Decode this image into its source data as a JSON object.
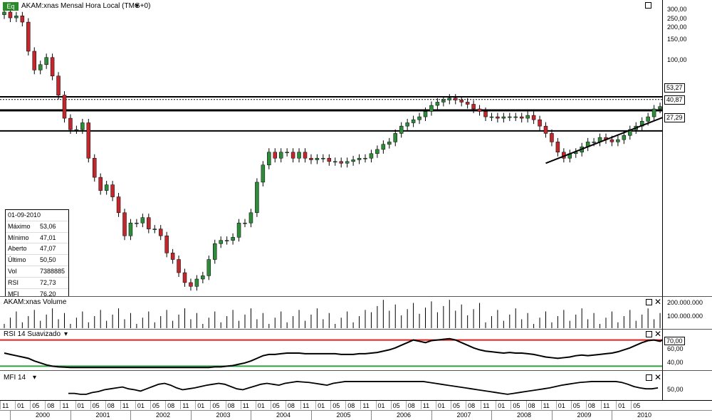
{
  "header": {
    "title": "AKAM:xnas Mensal Hora Local (TMG+0)",
    "badge": "Eq"
  },
  "colors": {
    "up_candle": "#2e8b3a",
    "down_candle": "#c0282d",
    "rsi_upper_line": "#e0201a",
    "rsi_lower_line": "#2ea043",
    "line": "#000000"
  },
  "info": {
    "date": "01-09-2010",
    "rows": [
      {
        "label": "Máximo",
        "value": "53,06"
      },
      {
        "label": "Mínimo",
        "value": "47,01"
      },
      {
        "label": "Aberto",
        "value": "47,07"
      },
      {
        "label": "Último",
        "value": "50,50"
      },
      {
        "label": "Vol",
        "value": "7388885"
      },
      {
        "label": "RSI",
        "value": "72,73"
      },
      {
        "label": "MFI",
        "value": "76,20"
      }
    ]
  },
  "price_axis": {
    "ticks": [
      "300,00",
      "250,00",
      "200,00",
      "150,00",
      "100,00"
    ],
    "highlights": [
      "53,27",
      "40,87",
      "27,29"
    ]
  },
  "volume_panel": {
    "title": "AKAM:xnas Volume",
    "ticks": [
      "200.000.000",
      "100.000.000"
    ]
  },
  "rsi_panel": {
    "title": "RSI 14 Suavizado",
    "ticks": [
      "70,00",
      "60,00",
      "40,00"
    ]
  },
  "mfi_panel": {
    "title": "MFI 14",
    "ticks": [
      "50,00"
    ]
  },
  "x_axis": {
    "month_labels": [
      "11",
      "01",
      "05",
      "08",
      "11",
      "01",
      "05",
      "08",
      "11",
      "01",
      "05",
      "08",
      "11",
      "01",
      "05",
      "08",
      "11",
      "01",
      "05",
      "08",
      "11",
      "01",
      "05",
      "08",
      "11",
      "01",
      "05",
      "08",
      "11",
      "01",
      "05",
      "08",
      "11",
      "01",
      "05",
      "08",
      "11",
      "01",
      "05",
      "08",
      "11",
      "01",
      "05"
    ],
    "years": [
      "2000",
      "2001",
      "2002",
      "2003",
      "2004",
      "2005",
      "2006",
      "2007",
      "2008",
      "2009",
      "2010"
    ]
  },
  "chart_data": [
    {
      "type": "candlestick",
      "title": "AKAM:xnas Mensal Hora Local (TMG+0)",
      "period": "monthly, Nov 1999 – Sep 2010",
      "y_scale": "log",
      "horizontal_levels": [
        53.27,
        40.87,
        27.29
      ],
      "close": [
        280,
        250,
        260,
        230,
        130,
        90,
        100,
        115,
        80,
        55,
        35,
        28,
        28,
        32,
        16,
        11,
        8.5,
        9.5,
        7.5,
        5.5,
        3.5,
        4.5,
        4.5,
        5,
        4,
        4,
        3.5,
        2.5,
        2.2,
        1.7,
        1.4,
        1.3,
        1.5,
        1.6,
        2.2,
        3,
        3.2,
        3.2,
        3.4,
        4.5,
        4.5,
        5.5,
        10,
        14,
        18,
        16,
        18,
        18,
        16,
        18,
        16,
        15.5,
        16,
        16,
        15,
        15,
        14.5,
        15,
        15.5,
        16,
        16,
        17.5,
        19,
        21,
        22,
        26,
        30,
        32,
        34,
        36,
        40,
        45,
        48,
        50,
        52,
        50,
        48,
        46,
        42,
        40,
        36,
        36,
        35,
        36,
        36,
        36,
        35,
        37,
        34,
        30,
        26,
        22,
        18,
        16,
        17.5,
        18,
        20,
        22,
        22,
        24,
        23,
        22,
        23,
        25,
        28,
        30,
        33,
        36,
        42,
        44,
        46,
        47.5,
        50.5
      ],
      "rsi": [
        50,
        48,
        46,
        44,
        42,
        38,
        35,
        32,
        30,
        29,
        28.5,
        28,
        28,
        28,
        28,
        28,
        28,
        28,
        28,
        28,
        28,
        28,
        28,
        28,
        28,
        28,
        28,
        28,
        28,
        28,
        28,
        28,
        28,
        28,
        28,
        29,
        29,
        30,
        31,
        33,
        35,
        38,
        42,
        46,
        48,
        48,
        49,
        50,
        50,
        50,
        49,
        49,
        49,
        49,
        49,
        49,
        48,
        48,
        48,
        49,
        49,
        50,
        51,
        53,
        55,
        58,
        62,
        66,
        70,
        68,
        66,
        69,
        70,
        71,
        72,
        70,
        66,
        62,
        58,
        55,
        53,
        52,
        51,
        50,
        51,
        50,
        50,
        49,
        48,
        46,
        44,
        43,
        42,
        43,
        44,
        46,
        47,
        46,
        47,
        48,
        49,
        50,
        52,
        55,
        58,
        62,
        66,
        69,
        70,
        68,
        72.73
      ],
      "mfi": [
        40,
        40,
        38,
        38,
        42,
        44,
        48,
        50,
        52,
        54,
        50,
        48,
        45,
        50,
        55,
        60,
        62,
        58,
        52,
        48,
        50,
        52,
        55,
        58,
        60,
        62,
        60,
        55,
        50,
        48,
        52,
        56,
        60,
        62,
        60,
        58,
        62,
        64,
        66,
        65,
        64,
        62,
        60,
        58,
        62,
        64,
        66,
        66,
        66,
        66,
        66,
        66,
        66,
        66,
        66,
        66,
        66,
        66,
        66,
        66,
        64,
        62,
        60,
        58,
        56,
        54,
        52,
        50,
        48,
        46,
        44,
        42,
        40,
        38,
        40,
        42,
        44,
        46,
        48,
        50,
        52,
        55,
        58,
        60,
        62,
        64,
        65,
        66,
        66,
        66,
        66,
        66,
        64,
        60,
        55,
        52,
        50,
        50,
        52,
        55,
        58,
        60,
        62,
        62,
        64,
        64,
        64,
        58,
        62,
        70,
        76.2
      ]
    }
  ]
}
